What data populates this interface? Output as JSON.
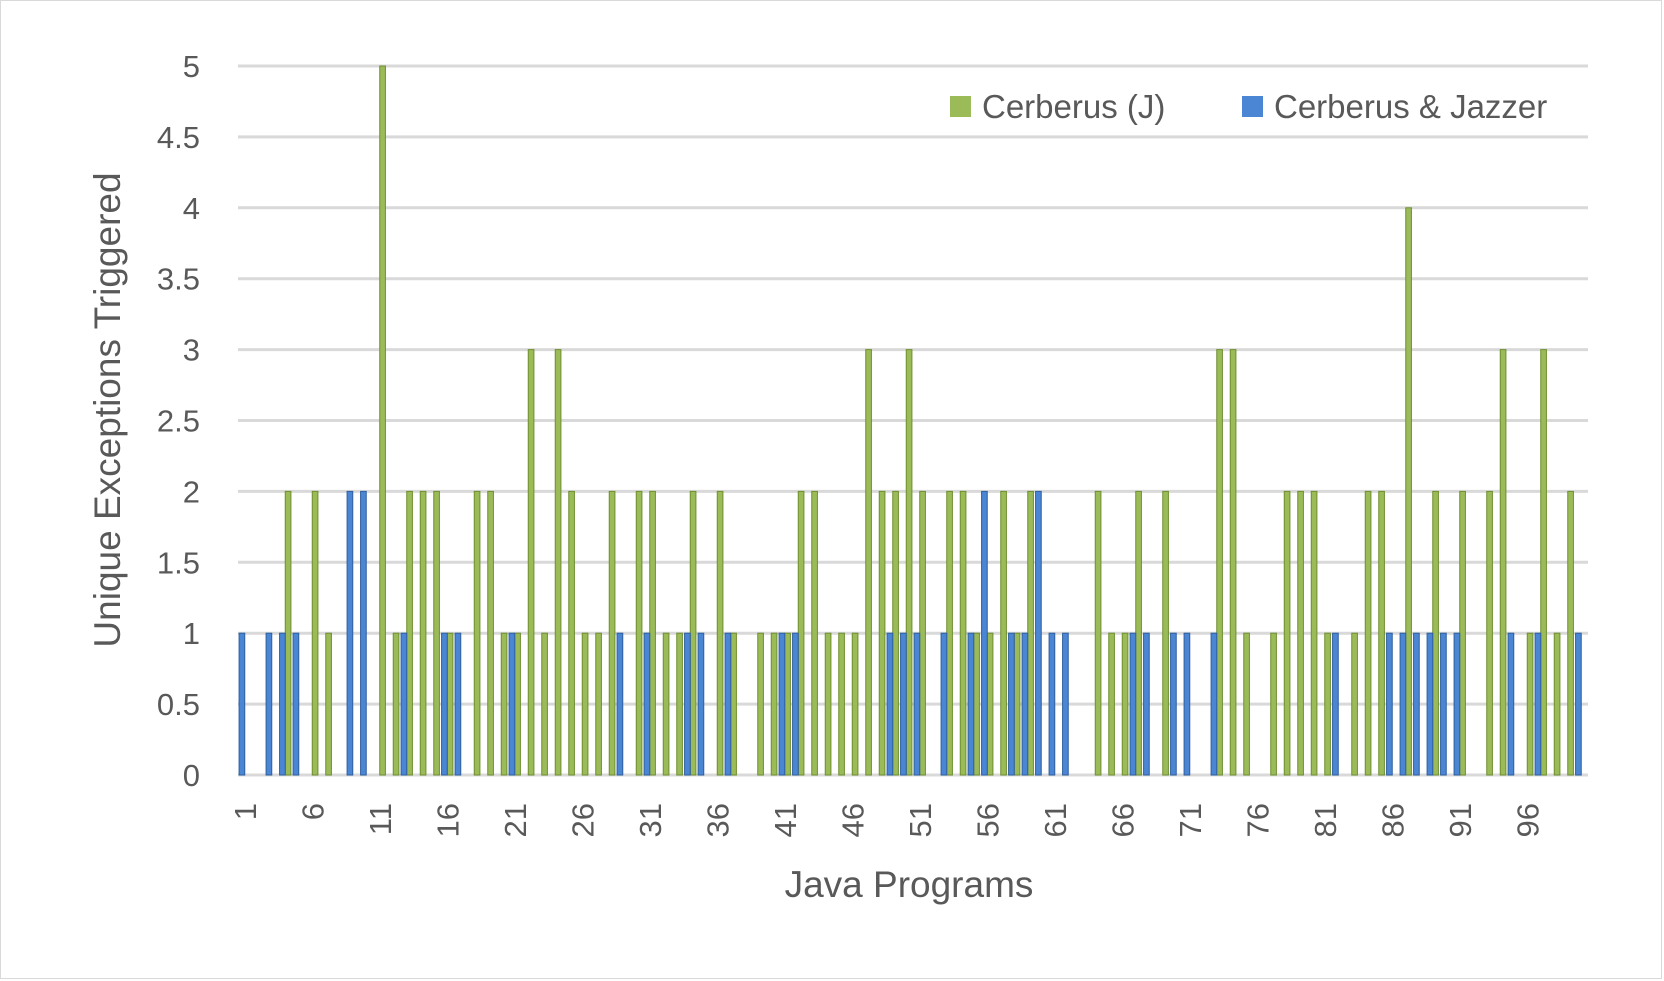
{
  "chart_data": {
    "type": "bar",
    "title": "",
    "xlabel": "Java Programs",
    "ylabel": "Unique Exceptions Triggered",
    "ylim": [
      0,
      5
    ],
    "yticks": [
      "0",
      "0.5",
      "1",
      "1.5",
      "2",
      "2.5",
      "3",
      "3.5",
      "4",
      "4.5",
      "5"
    ],
    "grid": true,
    "legend_position": "top-right",
    "x_tick_labels": [
      "1",
      "6",
      "11",
      "16",
      "21",
      "26",
      "31",
      "36",
      "41",
      "46",
      "51",
      "56",
      "61",
      "66",
      "71",
      "76",
      "81",
      "86",
      "91",
      "96"
    ],
    "categories": [
      1,
      2,
      3,
      4,
      5,
      6,
      7,
      8,
      9,
      10,
      11,
      12,
      13,
      14,
      15,
      16,
      17,
      18,
      19,
      20,
      21,
      22,
      23,
      24,
      25,
      26,
      27,
      28,
      29,
      30,
      31,
      32,
      33,
      34,
      35,
      36,
      37,
      38,
      39,
      40,
      41,
      42,
      43,
      44,
      45,
      46,
      47,
      48,
      49,
      50,
      51,
      52,
      53,
      54,
      55,
      56,
      57,
      58,
      59,
      60,
      61,
      62,
      63,
      64,
      65,
      66,
      67,
      68,
      69,
      70,
      71,
      72,
      73,
      74,
      75,
      76,
      77,
      78,
      79,
      80,
      81,
      82,
      83,
      84,
      85,
      86,
      87,
      88,
      89,
      90,
      91,
      92,
      93,
      94,
      95,
      96,
      97,
      98,
      99,
      100
    ],
    "series": [
      {
        "name": "Cerberus (J)",
        "color": "#9bbb59",
        "values": [
          0,
          0,
          0,
          2,
          0,
          2,
          1,
          0,
          0,
          0,
          5,
          1,
          2,
          2,
          2,
          1,
          0,
          2,
          2,
          1,
          1,
          3,
          1,
          3,
          2,
          1,
          1,
          2,
          0,
          2,
          2,
          1,
          1,
          2,
          0,
          2,
          1,
          0,
          1,
          1,
          1,
          2,
          2,
          1,
          1,
          1,
          3,
          2,
          2,
          3,
          2,
          0,
          2,
          2,
          1,
          1,
          2,
          1,
          2,
          0,
          0,
          0,
          0,
          2,
          1,
          1,
          2,
          0,
          2,
          0,
          0,
          0,
          3,
          3,
          1,
          0,
          1,
          2,
          2,
          2,
          1,
          0,
          1,
          2,
          2,
          0,
          4,
          0,
          2,
          0,
          2,
          0,
          2,
          3,
          0,
          1,
          3,
          1,
          2,
          0
        ]
      },
      {
        "name": "Cerberus & Jazzer",
        "color": "#4a86d4",
        "values": [
          1,
          0,
          1,
          1,
          1,
          0,
          0,
          0,
          2,
          2,
          0,
          0,
          1,
          0,
          0,
          1,
          1,
          0,
          0,
          0,
          1,
          0,
          0,
          0,
          0,
          0,
          0,
          0,
          1,
          0,
          1,
          0,
          0,
          1,
          1,
          0,
          1,
          0,
          0,
          0,
          1,
          1,
          0,
          0,
          0,
          0,
          0,
          0,
          1,
          1,
          1,
          0,
          1,
          0,
          1,
          2,
          0,
          1,
          1,
          2,
          1,
          1,
          0,
          0,
          0,
          0,
          1,
          1,
          0,
          1,
          1,
          0,
          1,
          0,
          0,
          0,
          0,
          0,
          0,
          0,
          0,
          1,
          0,
          0,
          0,
          1,
          1,
          1,
          1,
          1,
          1,
          0,
          0,
          0,
          1,
          0,
          1,
          0,
          0,
          1
        ]
      }
    ]
  }
}
